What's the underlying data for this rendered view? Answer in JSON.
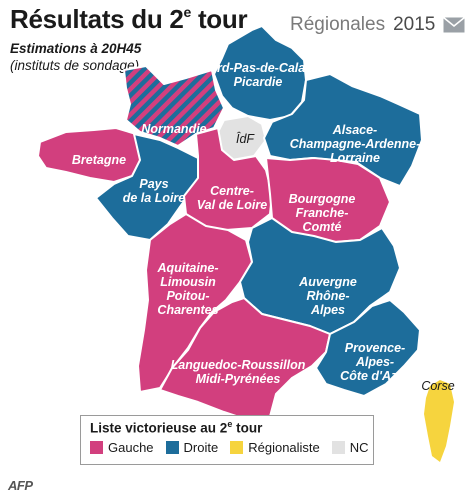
{
  "title": {
    "main": "Résultats du 2",
    "sup": "e",
    "suffix": " tour"
  },
  "brand": {
    "name": "Régionales",
    "year": "2015",
    "icon": "mail-icon"
  },
  "subtitle": {
    "line1": "Estimations à 20H45",
    "line2": "(instituts de sondage)"
  },
  "colors": {
    "gauche": "#d23f7e",
    "droite": "#1d6d9b",
    "regionaliste": "#f6d43e",
    "nc": "#e2e2e2",
    "border": "#ffffff"
  },
  "regions": [
    {
      "id": "nord-pas-de-calais-picardie",
      "line1": "Nord-Pas-de-Calais",
      "line2": "Picardie",
      "winner": "droite"
    },
    {
      "id": "normandie",
      "line1": "Normandie",
      "line2": "",
      "winner": "gauche/droite"
    },
    {
      "id": "idf",
      "line1": "ÎdF",
      "line2": "",
      "winner": "nc"
    },
    {
      "id": "alsace",
      "line1": "Alsace-",
      "line2": "Champagne-Ardenne-",
      "line3": "Lorraine",
      "winner": "droite"
    },
    {
      "id": "bretagne",
      "line1": "Bretagne",
      "line2": "",
      "winner": "gauche"
    },
    {
      "id": "pays-de-la-loire",
      "line1": "Pays",
      "line2": "de la Loire",
      "winner": "droite"
    },
    {
      "id": "centre",
      "line1": "Centre-",
      "line2": "Val de Loire",
      "winner": "gauche"
    },
    {
      "id": "bourgogne",
      "line1": "Bourgogne",
      "line2": "Franche-",
      "line3": "Comté",
      "winner": "gauche"
    },
    {
      "id": "aquitaine",
      "line1": "Aquitaine-",
      "line2": "Limousin",
      "line3": "Poitou-",
      "line4": "Charentes",
      "winner": "gauche"
    },
    {
      "id": "auvergne",
      "line1": "Auvergne",
      "line2": "Rhône-",
      "line3": "Alpes",
      "winner": "droite"
    },
    {
      "id": "languedoc",
      "line1": "Languedoc-Roussillon",
      "line2": "Midi-Pyrénées",
      "winner": "gauche"
    },
    {
      "id": "paca",
      "line1": "Provence-",
      "line2": "Alpes-",
      "line3": "Côte d'Azur",
      "winner": "droite"
    },
    {
      "id": "corse",
      "line1": "Corse",
      "line2": "",
      "winner": "regionaliste"
    }
  ],
  "legend": {
    "title_main": "Liste victorieuse au 2",
    "title_sup": "e",
    "title_suffix": " tour",
    "items": [
      {
        "label": "Gauche",
        "color": "#d23f7e"
      },
      {
        "label": "Droite",
        "color": "#1d6d9b"
      },
      {
        "label": "Régionaliste",
        "color": "#f6d43e"
      },
      {
        "label": "NC",
        "color": "#e2e2e2"
      }
    ]
  },
  "credit": "AFP"
}
